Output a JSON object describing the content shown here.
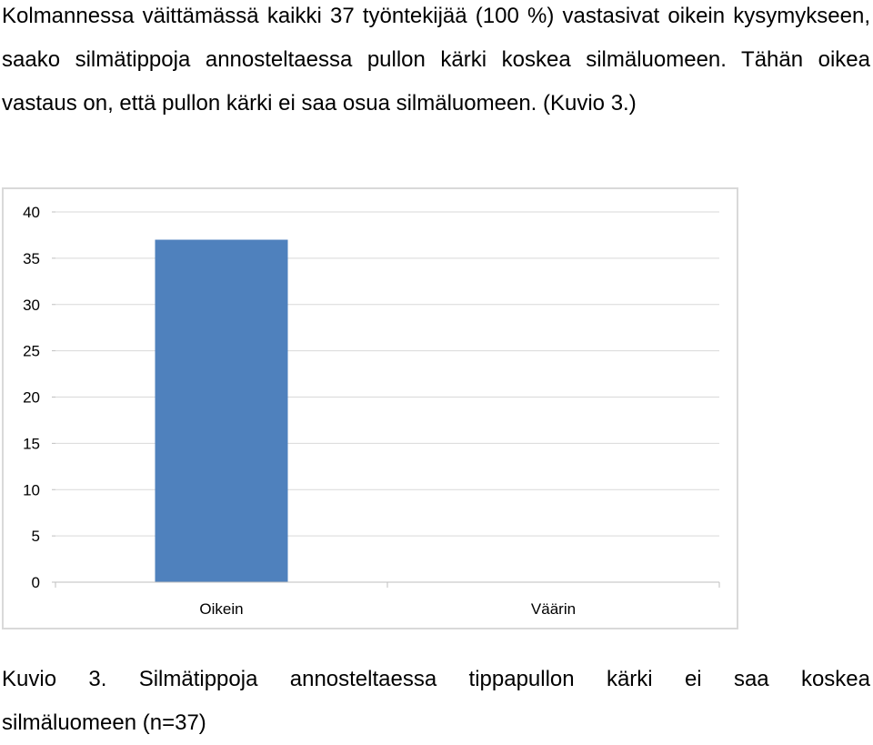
{
  "paragraph": "Kolmannessa väittämässä kaikki 37 työntekijää (100 %) vastasivat oikein kysymykseen, saako silmätippoja annosteltaessa pullon kärki koskea silmäluomeen. Tähän oikea vastaus on, että pullon kärki ei saa osua silmäluomeen. (Kuvio 3.)",
  "caption_line1": "Kuvio 3. Silmätippoja annosteltaessa tippapullon kärki ei saa koskea",
  "caption_line2": "silmäluomeen (n=37)",
  "chart_data": {
    "type": "bar",
    "categories": [
      "Oikein",
      "Väärin"
    ],
    "values": [
      37,
      0
    ],
    "ylim": [
      0,
      40
    ],
    "yticks": [
      0,
      5,
      10,
      15,
      20,
      25,
      30,
      35,
      40
    ],
    "title": "",
    "xlabel": "",
    "ylabel": "",
    "grid": true,
    "legend": "none",
    "bar_color": "#4f81bd",
    "grid_color": "#d9d9d9",
    "axis_color": "#bfbfbf"
  }
}
